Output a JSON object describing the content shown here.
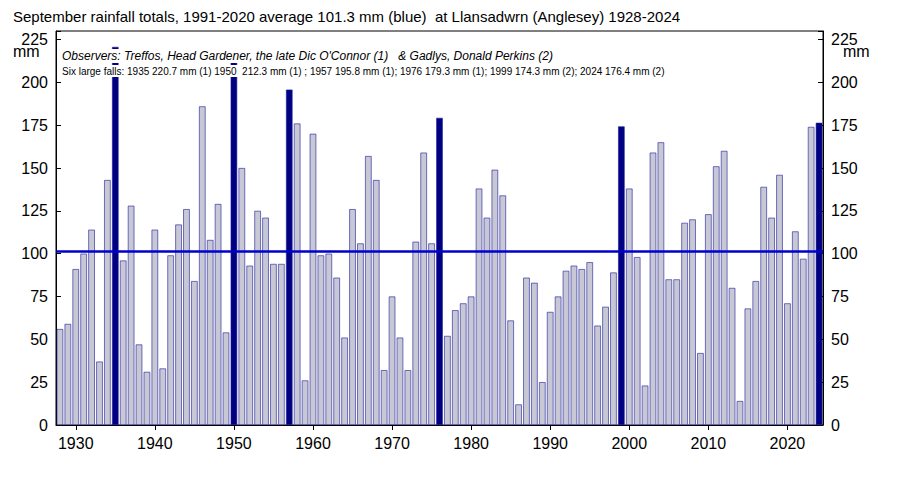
{
  "chart_data": {
    "type": "bar",
    "title": "September rainfall totals, 1991-2020 average 101.3 mm (blue)  at Llansadwrn (Anglesey) 1928-2024",
    "annotations": [
      "Observers: Treffos, Head Gardener, the late Dic O'Connor (1)   & Gadlys, Donald Perkins (2)",
      "Six large falls: 1935 220.7 mm (1) 1950  212.3 mm (1) ; 1957 195.8 mm (1); 1976 179.3 mm (1); 1999 174.3 mm (2); 2024 176.4 mm (2)"
    ],
    "y_label": "mm",
    "categories": [
      null,
      null,
      1930,
      null,
      null,
      null,
      null,
      null,
      null,
      null,
      null,
      null,
      1940,
      null,
      null,
      null,
      null,
      null,
      null,
      null,
      null,
      null,
      1950,
      null,
      null,
      null,
      null,
      null,
      null,
      null,
      null,
      null,
      1960,
      null,
      null,
      null,
      null,
      null,
      null,
      null,
      null,
      null,
      1970,
      null,
      null,
      null,
      null,
      null,
      null,
      null,
      null,
      null,
      1980,
      null,
      null,
      null,
      null,
      null,
      null,
      null,
      null,
      null,
      1990,
      null,
      null,
      null,
      null,
      null,
      null,
      null,
      null,
      null,
      2000,
      null,
      null,
      null,
      null,
      null,
      null,
      null,
      null,
      null,
      2010,
      null,
      null,
      null,
      null,
      null,
      null,
      null,
      null,
      null,
      2020,
      null,
      null,
      null,
      null
    ],
    "values": [
      56,
      59,
      91,
      100,
      114,
      37,
      143,
      220.7,
      96,
      128,
      47,
      31,
      114,
      33,
      99,
      117,
      126,
      84,
      186,
      108,
      129,
      54,
      212.3,
      150,
      93,
      125,
      121,
      94,
      94,
      195.8,
      176,
      26,
      170,
      99,
      100,
      86,
      51,
      126,
      106,
      157,
      143,
      32,
      75,
      51,
      32,
      107,
      159,
      106,
      179.3,
      52,
      67,
      71,
      75,
      138,
      121,
      149,
      134,
      61,
      12,
      86,
      83,
      25,
      66,
      75,
      90,
      93,
      91,
      95,
      58,
      69,
      89,
      174.3,
      138,
      98,
      23,
      159,
      165,
      85,
      85,
      118,
      120,
      42,
      123,
      151,
      160,
      80,
      14,
      68,
      84,
      139,
      121,
      146,
      71,
      113,
      97,
      174,
      176.4
    ],
    "colors": [
      "#c8c8d4",
      "#c8c8d4",
      "#c8c8d4",
      "#c8c8d4",
      "#c8c8d4",
      "#c8c8d4",
      "#c8c8d4",
      "#000080",
      "#c8c8d4",
      "#c8c8d4",
      "#c8c8d4",
      "#c8c8d4",
      "#c8c8d4",
      "#c8c8d4",
      "#c8c8d4",
      "#c8c8d4",
      "#c8c8d4",
      "#c8c8d4",
      "#c8c8d4",
      "#c8c8d4",
      "#c8c8d4",
      "#c8c8d4",
      "#000080",
      "#c8c8d4",
      "#c8c8d4",
      "#c8c8d4",
      "#c8c8d4",
      "#c8c8d4",
      "#c8c8d4",
      "#000080",
      "#c8c8d4",
      "#c8c8d4",
      "#c8c8d4",
      "#c8c8d4",
      "#c8c8d4",
      "#c8c8d4",
      "#c8c8d4",
      "#c8c8d4",
      "#c8c8d4",
      "#c8c8d4",
      "#c8c8d4",
      "#c8c8d4",
      "#c8c8d4",
      "#c8c8d4",
      "#c8c8d4",
      "#c8c8d4",
      "#c8c8d4",
      "#c8c8d4",
      "#000080",
      "#c8c8d4",
      "#c8c8d4",
      "#c8c8d4",
      "#c8c8d4",
      "#c8c8d4",
      "#c8c8d4",
      "#c8c8d4",
      "#c8c8d4",
      "#c8c8d4",
      "#c8c8d4",
      "#c8c8d4",
      "#c8c8d4",
      "#c8c8d4",
      "#c8c8d4",
      "#c8c8d4",
      "#c8c8d4",
      "#c8c8d4",
      "#c8c8d4",
      "#c8c8d4",
      "#c8c8d4",
      "#c8c8d4",
      "#c8c8d4",
      "#000080",
      "#c8c8d4",
      "#c8c8d4",
      "#c8c8d4",
      "#c8c8d4",
      "#c8c8d4",
      "#c8c8d4",
      "#c8c8d4",
      "#c8c8d4",
      "#c8c8d4",
      "#c8c8d4",
      "#c8c8d4",
      "#c8c8d4",
      "#c8c8d4",
      "#c8c8d4",
      "#c8c8d4",
      "#c8c8d4",
      "#c8c8d4",
      "#c8c8d4",
      "#c8c8d4",
      "#c8c8d4",
      "#c8c8d4",
      "#c8c8d4",
      "#c8c8d4",
      "#c8c8d4",
      "#000080"
    ],
    "reference_line": {
      "value": 101.3,
      "color": "#0000cc"
    },
    "ylim": [
      0,
      230
    ],
    "yticks": [
      0,
      25,
      50,
      75,
      100,
      125,
      150,
      175,
      200,
      225
    ],
    "grid": false
  }
}
